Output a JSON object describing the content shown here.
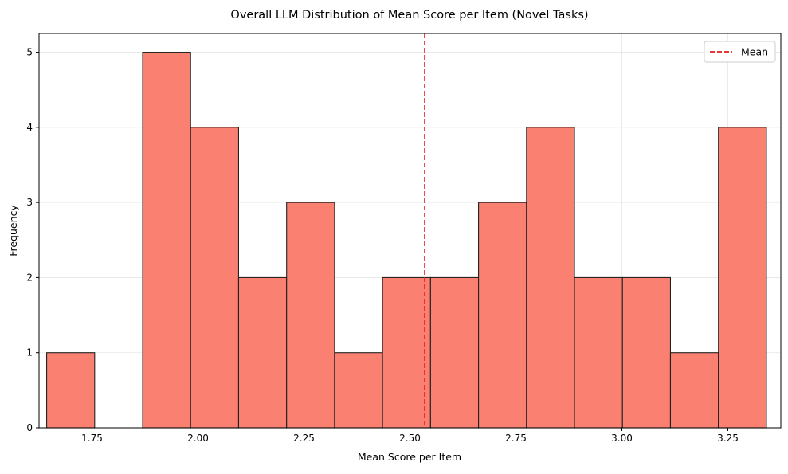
{
  "chart_data": {
    "type": "bar",
    "title": "Overall LLM Distribution of Mean Score per Item (Novel Tasks)",
    "xlabel": "Mean Score per Item",
    "ylabel": "Frequency",
    "xlim": [
      1.625,
      3.375
    ],
    "ylim": [
      0,
      5.25
    ],
    "x_ticks": [
      1.75,
      2.0,
      2.25,
      2.5,
      2.75,
      3.0,
      3.25
    ],
    "x_tick_labels": [
      "1.75",
      "2.00",
      "2.25",
      "2.50",
      "2.75",
      "3.00",
      "3.25"
    ],
    "y_ticks": [
      0,
      1,
      2,
      3,
      4,
      5
    ],
    "y_tick_labels": [
      "0",
      "1",
      "2",
      "3",
      "4",
      "5"
    ],
    "bin_edges": [
      1.643,
      1.7562,
      1.8694,
      1.9826,
      2.0958,
      2.209,
      2.3222,
      2.4354,
      2.5486,
      2.6618,
      2.775,
      2.8882,
      3.0014,
      3.1146,
      3.2278,
      3.341
    ],
    "values": [
      1,
      0,
      5,
      4,
      2,
      3,
      1,
      2,
      2,
      3,
      4,
      2,
      2,
      1,
      4
    ],
    "mean": 2.535,
    "bar_color": "#fa8072",
    "bar_edge_color": "#222222",
    "mean_line_color": "#e41a1c",
    "grid": true,
    "legend_position": "top-right",
    "legend": [
      {
        "name": "Mean",
        "style": "dashed"
      }
    ]
  }
}
